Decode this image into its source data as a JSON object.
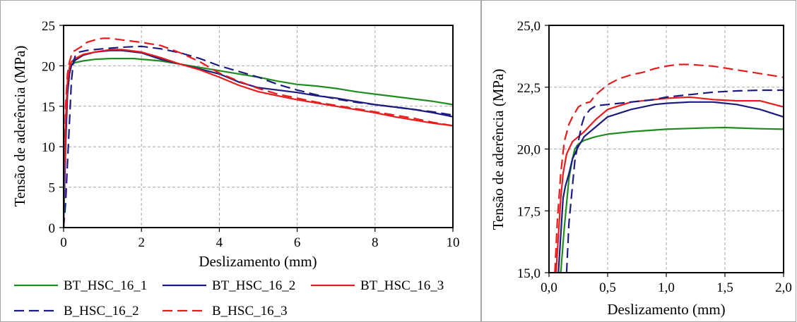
{
  "chart_data": [
    {
      "type": "line",
      "xlabel": "Deslizamento (mm)",
      "ylabel": "Tensão de aderência (MPa)",
      "xlim": [
        0,
        10
      ],
      "ylim": [
        0,
        25
      ],
      "xticks": [
        0,
        2,
        4,
        6,
        8,
        10
      ],
      "yticks": [
        0,
        5,
        10,
        15,
        20,
        25
      ],
      "xtick_labels": [
        "0",
        "2",
        "4",
        "6",
        "8",
        "10"
      ],
      "ytick_labels": [
        "0",
        "5",
        "10",
        "15",
        "20",
        "25"
      ],
      "grid": true,
      "legend": "bottom",
      "series": [
        {
          "name": "BT_HSC_16_1",
          "color": "#1e8c1e",
          "dash": "solid",
          "x": [
            0.0,
            0.02,
            0.05,
            0.1,
            0.15,
            0.2,
            0.3,
            0.5,
            0.8,
            1.2,
            1.8,
            2.5,
            3.0,
            3.5,
            4.0,
            4.5,
            5.0,
            5.5,
            6.0,
            6.5,
            7.0,
            7.5,
            8.0,
            8.5,
            9.0,
            9.5,
            10.0
          ],
          "y": [
            0.0,
            5.0,
            12.0,
            17.5,
            19.5,
            20.2,
            20.4,
            20.6,
            20.8,
            20.9,
            20.9,
            20.6,
            20.2,
            19.8,
            19.4,
            19.0,
            18.6,
            18.1,
            17.7,
            17.5,
            17.2,
            16.8,
            16.5,
            16.2,
            15.9,
            15.6,
            15.2
          ]
        },
        {
          "name": "BT_HSC_16_2",
          "color": "#1c1c80",
          "dash": "solid",
          "x": [
            0.0,
            0.02,
            0.05,
            0.1,
            0.15,
            0.2,
            0.3,
            0.5,
            0.8,
            1.2,
            1.5,
            2.0,
            2.5,
            3.0,
            3.5,
            4.0,
            4.5,
            5.0,
            5.5,
            6.0,
            6.5,
            7.0,
            7.5,
            8.0,
            8.5,
            9.0,
            9.5,
            10.0
          ],
          "y": [
            0.0,
            4.0,
            10.0,
            16.5,
            19.0,
            20.0,
            20.7,
            21.3,
            21.7,
            21.9,
            21.9,
            21.6,
            20.8,
            20.2,
            19.6,
            19.0,
            18.0,
            17.3,
            17.0,
            16.7,
            16.3,
            16.0,
            15.6,
            15.2,
            14.9,
            14.6,
            14.2,
            13.7
          ]
        },
        {
          "name": "BT_HSC_16_3",
          "color": "#e81c1c",
          "dash": "solid",
          "x": [
            0.0,
            0.02,
            0.05,
            0.1,
            0.15,
            0.2,
            0.3,
            0.5,
            0.8,
            1.2,
            1.5,
            2.0,
            2.5,
            3.0,
            3.5,
            4.0,
            4.5,
            5.0,
            5.5,
            6.0,
            6.5,
            7.0,
            7.5,
            8.0,
            8.5,
            9.0,
            9.5,
            10.0
          ],
          "y": [
            0.0,
            6.0,
            13.0,
            18.0,
            19.8,
            20.5,
            20.9,
            21.4,
            21.7,
            22.0,
            22.0,
            21.7,
            21.0,
            20.2,
            19.5,
            18.6,
            17.6,
            16.8,
            16.3,
            15.8,
            15.4,
            15.0,
            14.6,
            14.2,
            13.7,
            13.3,
            12.9,
            12.6
          ]
        },
        {
          "name": "B_HSC_16_2",
          "color": "#1c1c80",
          "dash": "dashed",
          "x": [
            0.0,
            0.05,
            0.1,
            0.15,
            0.2,
            0.25,
            0.3,
            0.4,
            0.5,
            0.6,
            0.8,
            1.0,
            1.5,
            2.0,
            2.5,
            3.0,
            3.5,
            4.0,
            4.5,
            5.0,
            5.5,
            6.0,
            6.5,
            7.0,
            7.5,
            8.0,
            8.5,
            9.0,
            9.5,
            10.0
          ],
          "y": [
            0.0,
            3.0,
            8.0,
            13.0,
            18.0,
            20.5,
            21.2,
            21.7,
            21.8,
            21.9,
            22.0,
            22.1,
            22.3,
            22.4,
            22.1,
            21.6,
            20.9,
            20.0,
            19.3,
            18.6,
            17.7,
            17.0,
            16.4,
            15.9,
            15.5,
            15.2,
            14.9,
            14.6,
            14.3,
            13.9
          ]
        },
        {
          "name": "B_HSC_16_3",
          "color": "#e81c1c",
          "dash": "dashed",
          "x": [
            0.0,
            0.02,
            0.05,
            0.1,
            0.15,
            0.2,
            0.25,
            0.3,
            0.4,
            0.5,
            0.6,
            0.8,
            1.0,
            1.2,
            1.5,
            2.0,
            2.5,
            3.0,
            3.5,
            4.0,
            4.5,
            5.0,
            5.5,
            6.0,
            6.5,
            7.0,
            7.5,
            8.0,
            8.5,
            9.0,
            9.5,
            10.0
          ],
          "y": [
            0.0,
            8.0,
            15.0,
            19.0,
            20.5,
            21.3,
            21.8,
            21.9,
            22.2,
            22.5,
            22.9,
            23.2,
            23.4,
            23.4,
            23.2,
            22.9,
            22.5,
            21.6,
            20.5,
            19.1,
            18.1,
            17.2,
            16.5,
            16.0,
            15.5,
            15.1,
            14.7,
            14.3,
            13.9,
            13.5,
            13.0,
            12.6
          ]
        }
      ]
    },
    {
      "type": "line",
      "xlabel": "Deslizamento (mm)",
      "ylabel": "Tensão de aderência (MPa)",
      "xlim": [
        0,
        2
      ],
      "ylim": [
        15,
        25
      ],
      "xticks": [
        0,
        0.5,
        1,
        1.5,
        2
      ],
      "yticks": [
        15,
        17.5,
        20,
        22.5,
        25
      ],
      "xtick_labels": [
        "0,0",
        "0,5",
        "1,0",
        "1,5",
        "2,0"
      ],
      "ytick_labels": [
        "15,0",
        "17,5",
        "20,0",
        "22,5",
        "25,0"
      ],
      "grid": true,
      "series": [
        {
          "name": "BT_HSC_16_1",
          "color": "#1e8c1e",
          "dash": "solid",
          "x": [
            0.1,
            0.13,
            0.15,
            0.17,
            0.2,
            0.22,
            0.25,
            0.3,
            0.4,
            0.5,
            0.7,
            1.0,
            1.3,
            1.5,
            1.8,
            2.0
          ],
          "y": [
            15.0,
            16.8,
            17.8,
            18.8,
            19.6,
            20.0,
            20.2,
            20.35,
            20.5,
            20.6,
            20.7,
            20.8,
            20.85,
            20.87,
            20.82,
            20.8
          ]
        },
        {
          "name": "BT_HSC_16_2",
          "color": "#1c1c80",
          "dash": "solid",
          "x": [
            0.08,
            0.1,
            0.12,
            0.14,
            0.17,
            0.2,
            0.25,
            0.3,
            0.4,
            0.5,
            0.7,
            0.9,
            1.0,
            1.2,
            1.4,
            1.6,
            1.8,
            2.0
          ],
          "y": [
            15.0,
            16.5,
            18.0,
            18.5,
            19.0,
            19.6,
            20.1,
            20.5,
            20.9,
            21.3,
            21.6,
            21.8,
            21.85,
            21.9,
            21.9,
            21.8,
            21.6,
            21.3
          ]
        },
        {
          "name": "BT_HSC_16_3",
          "color": "#e81c1c",
          "dash": "solid",
          "x": [
            0.06,
            0.08,
            0.1,
            0.12,
            0.15,
            0.2,
            0.25,
            0.3,
            0.4,
            0.5,
            0.7,
            0.9,
            1.0,
            1.2,
            1.4,
            1.6,
            1.8,
            2.0
          ],
          "y": [
            15.0,
            16.5,
            18.0,
            19.0,
            19.8,
            20.3,
            20.5,
            20.7,
            21.2,
            21.6,
            21.9,
            22.0,
            22.05,
            22.1,
            22.0,
            21.95,
            21.95,
            21.7
          ]
        },
        {
          "name": "B_HSC_16_2",
          "color": "#1c1c80",
          "dash": "dashed",
          "x": [
            0.15,
            0.17,
            0.2,
            0.22,
            0.25,
            0.28,
            0.3,
            0.35,
            0.4,
            0.5,
            0.6,
            0.7,
            0.8,
            0.9,
            1.0,
            1.2,
            1.4,
            1.6,
            1.8,
            2.0
          ],
          "y": [
            15.0,
            17.0,
            18.5,
            19.5,
            20.3,
            21.0,
            21.3,
            21.6,
            21.75,
            21.8,
            21.85,
            21.9,
            21.95,
            22.0,
            22.1,
            22.2,
            22.3,
            22.35,
            22.38,
            22.38
          ]
        },
        {
          "name": "B_HSC_16_3",
          "color": "#e81c1c",
          "dash": "dashed",
          "x": [
            0.05,
            0.07,
            0.1,
            0.13,
            0.17,
            0.2,
            0.25,
            0.3,
            0.35,
            0.4,
            0.5,
            0.6,
            0.7,
            0.8,
            0.9,
            1.0,
            1.1,
            1.2,
            1.4,
            1.6,
            1.8,
            2.0
          ],
          "y": [
            15.0,
            17.0,
            19.0,
            20.3,
            21.0,
            21.3,
            21.7,
            21.85,
            21.9,
            22.2,
            22.6,
            22.85,
            23.0,
            23.1,
            23.25,
            23.35,
            23.42,
            23.42,
            23.35,
            23.2,
            23.05,
            22.9
          ]
        }
      ]
    }
  ]
}
